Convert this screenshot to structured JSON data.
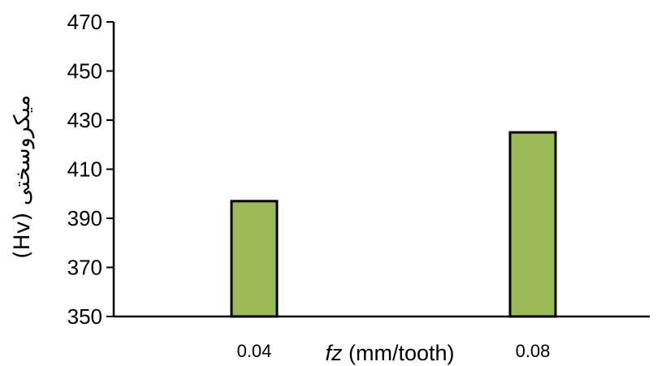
{
  "chart_data": {
    "type": "bar",
    "categories": [
      "0.04",
      "0.08"
    ],
    "values": [
      397,
      425
    ],
    "ylim": [
      350,
      470
    ],
    "yticks": [
      "350",
      "370",
      "390",
      "410",
      "430",
      "450",
      "470"
    ],
    "xlabel": {
      "italic": "fz",
      "rest": " (mm/tooth)"
    },
    "ylabel": "میکروسختی (Hv)",
    "grid": false,
    "colors": {
      "bar_fill": "#9bbb59",
      "bar_stroke": "#000000",
      "axis": "#000000"
    }
  }
}
